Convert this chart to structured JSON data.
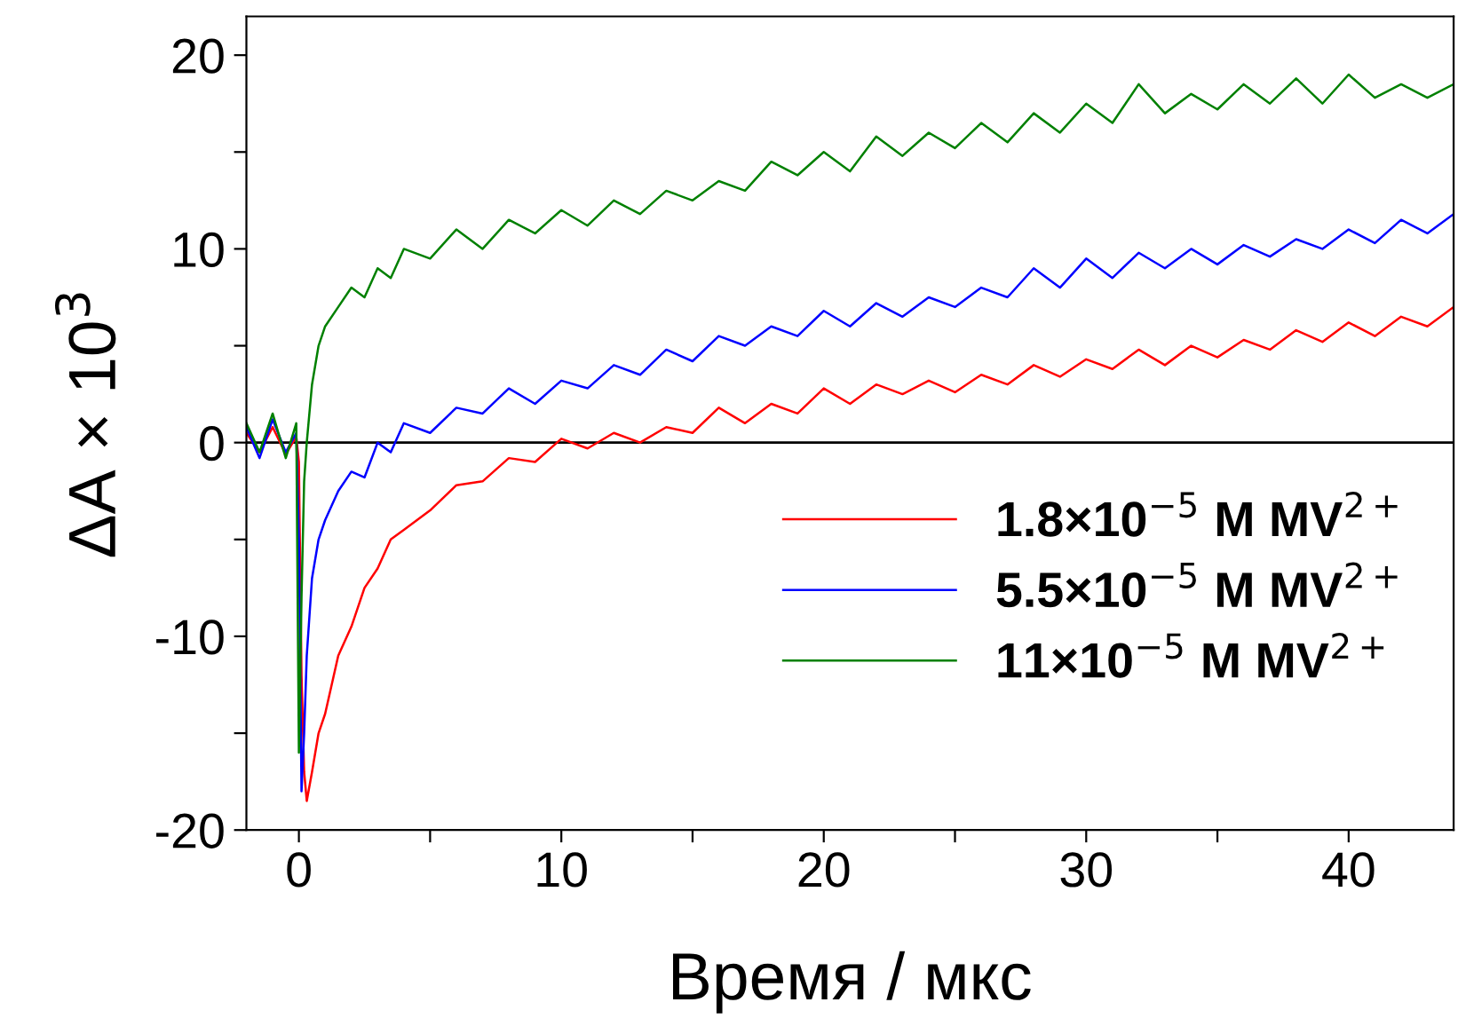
{
  "chart_data": {
    "type": "line",
    "xlabel": "Время / мкс",
    "ylabel": "ΔA × 10$^{3}$",
    "x": [
      -2,
      -1.5,
      -1,
      -0.5,
      -0.1,
      0,
      0.1,
      0.2,
      0.3,
      0.5,
      0.75,
      1,
      1.5,
      2,
      2.5,
      3,
      3.5,
      4,
      5,
      6,
      7,
      8,
      9,
      10,
      11,
      12,
      13,
      14,
      15,
      16,
      17,
      18,
      19,
      20,
      21,
      22,
      23,
      24,
      25,
      26,
      27,
      28,
      29,
      30,
      31,
      32,
      33,
      34,
      35,
      36,
      37,
      38,
      39,
      40,
      41,
      42,
      43,
      44
    ],
    "series": [
      {
        "name": "1.8×10$^{−5}$ M MV$^{2+}$",
        "color": "#ff0000",
        "values": [
          0.5,
          -0.5,
          0.8,
          -0.6,
          0.3,
          -1,
          -12,
          -17,
          -18.5,
          -17,
          -15,
          -14,
          -11,
          -9.5,
          -7.5,
          -6.5,
          -5,
          -4.5,
          -3.5,
          -2.2,
          -2,
          -0.8,
          -1,
          0.2,
          -0.3,
          0.5,
          0,
          0.8,
          0.5,
          1.8,
          1,
          2,
          1.5,
          2.8,
          2,
          3,
          2.5,
          3.2,
          2.6,
          3.5,
          3,
          4,
          3.4,
          4.3,
          3.8,
          4.8,
          4,
          5,
          4.4,
          5.3,
          4.8,
          5.8,
          5.2,
          6.2,
          5.5,
          6.5,
          6,
          7
        ]
      },
      {
        "name": "5.5×10$^{−5}$ M MV$^{2+}$",
        "color": "#0000ff",
        "values": [
          0.8,
          -0.8,
          1.2,
          -0.5,
          0.5,
          -5,
          -18,
          -15,
          -11,
          -7,
          -5,
          -4,
          -2.5,
          -1.5,
          -1.8,
          0,
          -0.5,
          1,
          0.5,
          1.8,
          1.5,
          2.8,
          2,
          3.2,
          2.8,
          4,
          3.5,
          4.8,
          4.2,
          5.5,
          5,
          6,
          5.5,
          6.8,
          6,
          7.2,
          6.5,
          7.5,
          7,
          8,
          7.5,
          9,
          8,
          9.5,
          8.5,
          9.8,
          9,
          10,
          9.2,
          10.2,
          9.6,
          10.5,
          10,
          11,
          10.3,
          11.5,
          10.8,
          11.8
        ]
      },
      {
        "name": "11×10$^{−5}$ M MV$^{2+}$",
        "color": "#008000",
        "values": [
          1,
          -0.5,
          1.5,
          -0.8,
          1,
          -16,
          -8,
          -2,
          0,
          3,
          5,
          6,
          7,
          8,
          7.5,
          9,
          8.5,
          10,
          9.5,
          11,
          10,
          11.5,
          10.8,
          12,
          11.2,
          12.5,
          11.8,
          13,
          12.5,
          13.5,
          13,
          14.5,
          13.8,
          15,
          14,
          15.8,
          14.8,
          16,
          15.2,
          16.5,
          15.5,
          17,
          16,
          17.5,
          16.5,
          18.5,
          17,
          18,
          17.2,
          18.5,
          17.5,
          18.8,
          17.5,
          19,
          17.8,
          18.5,
          17.8,
          18.5
        ]
      }
    ],
    "xlim": [
      -2,
      44
    ],
    "xticks": [
      0,
      {
        "value": 5,
        "label": null
      },
      10,
      {
        "value": 15,
        "label": null
      },
      20,
      {
        "value": 25,
        "label": null
      },
      30,
      {
        "value": 35,
        "label": null
      },
      40
    ],
    "ylim": [
      -20,
      22
    ],
    "yticks": [
      -20,
      {
        "value": -15,
        "label": null
      },
      -10,
      {
        "value": -5,
        "label": null
      },
      0,
      {
        "value": 5,
        "label": null
      },
      10,
      {
        "value": 15,
        "label": null
      },
      20
    ],
    "ref_lines": [
      {
        "axis": "y",
        "value": 0,
        "color": "#000000"
      }
    ],
    "legend": "lower right",
    "grid": false,
    "marker": "none",
    "line_style": "solid"
  }
}
